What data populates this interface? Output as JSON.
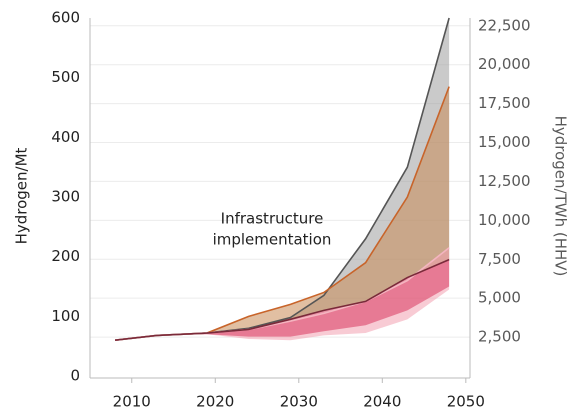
{
  "chart_data": {
    "type": "band",
    "y_label": "Hydrogen/Mt",
    "y2_label": "Hydrogen/TWh (HHV)",
    "annotation": [
      "Infrastructure",
      "implementation"
    ],
    "x": [
      2008,
      2013,
      2019,
      2024,
      2029,
      2033,
      2038,
      2043,
      2048
    ],
    "xlim": [
      2005,
      2050.5
    ],
    "xticks": [
      2010,
      2020,
      2030,
      2040,
      2050
    ],
    "ylim": [
      0,
      600
    ],
    "yticks": [
      0,
      100,
      200,
      300,
      400,
      500,
      600
    ],
    "y2lim": [
      0,
      23000
    ],
    "y2ticks": [
      {
        "value": 2500,
        "label": "2,500"
      },
      {
        "value": 5000,
        "label": "5,000"
      },
      {
        "value": 7500,
        "label": "7,500"
      },
      {
        "value": 10000,
        "label": "10,000"
      },
      {
        "value": 12500,
        "label": "12,500"
      },
      {
        "value": 15000,
        "label": "15,000"
      },
      {
        "value": 17500,
        "label": "17,500"
      },
      {
        "value": 20000,
        "label": "20,000"
      },
      {
        "value": 22500,
        "label": "22,500"
      }
    ],
    "grid": true,
    "bands": [
      {
        "color": "#9e9e9e",
        "line_color": "#555555",
        "upper": [
          60,
          68,
          72,
          80,
          98,
          135,
          230,
          350,
          600
        ],
        "lower": [
          60,
          68,
          72,
          78,
          95,
          110,
          125,
          165,
          195
        ]
      },
      {
        "color": "#c98a55",
        "line_color": "#c8642a",
        "upper": [
          60,
          68,
          72,
          100,
          120,
          140,
          190,
          300,
          485
        ],
        "lower": [
          60,
          68,
          72,
          78,
          95,
          110,
          125,
          165,
          195
        ]
      },
      {
        "color": "#f2a0b0",
        "line_color": "#f4b5c0",
        "upper": [
          60,
          68,
          72,
          78,
          92,
          105,
          125,
          160,
          215
        ],
        "lower": [
          60,
          68,
          70,
          62,
          60,
          68,
          72,
          95,
          145
        ]
      },
      {
        "color": "#d9385f",
        "line_color": "#7a2a3a",
        "upper": [
          60,
          68,
          72,
          78,
          95,
          110,
          125,
          165,
          195
        ],
        "lower": [
          60,
          68,
          70,
          66,
          66,
          75,
          85,
          110,
          150
        ]
      }
    ]
  }
}
